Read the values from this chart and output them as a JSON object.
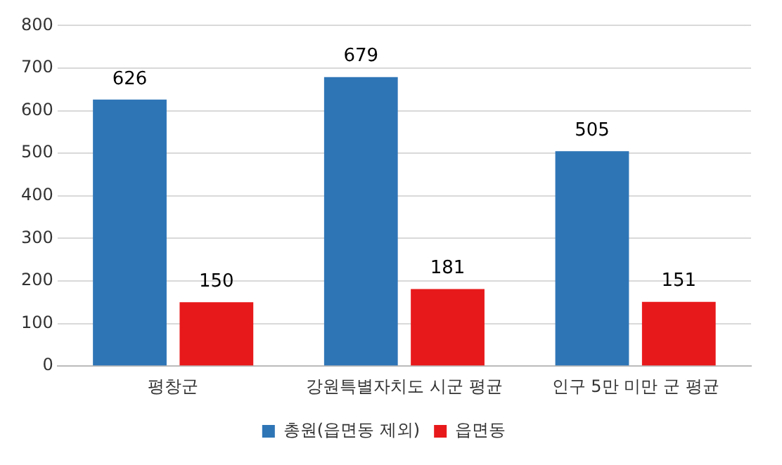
{
  "chart_data": {
    "type": "bar",
    "categories": [
      "평창군",
      "강원특별자치도 시군 평균",
      "인구 5만 미만 군 평균"
    ],
    "series": [
      {
        "name": "총원(읍면동 제외)",
        "color": "#2e75b6",
        "values": [
          626,
          679,
          505
        ]
      },
      {
        "name": "읍면동",
        "color": "#e8191b",
        "values": [
          150,
          181,
          151
        ]
      }
    ],
    "ylim": [
      0,
      800
    ],
    "yticks": [
      0,
      100,
      200,
      300,
      400,
      500,
      600,
      700,
      800
    ],
    "grid": "y",
    "legend": "bottom",
    "data_labels": true
  }
}
